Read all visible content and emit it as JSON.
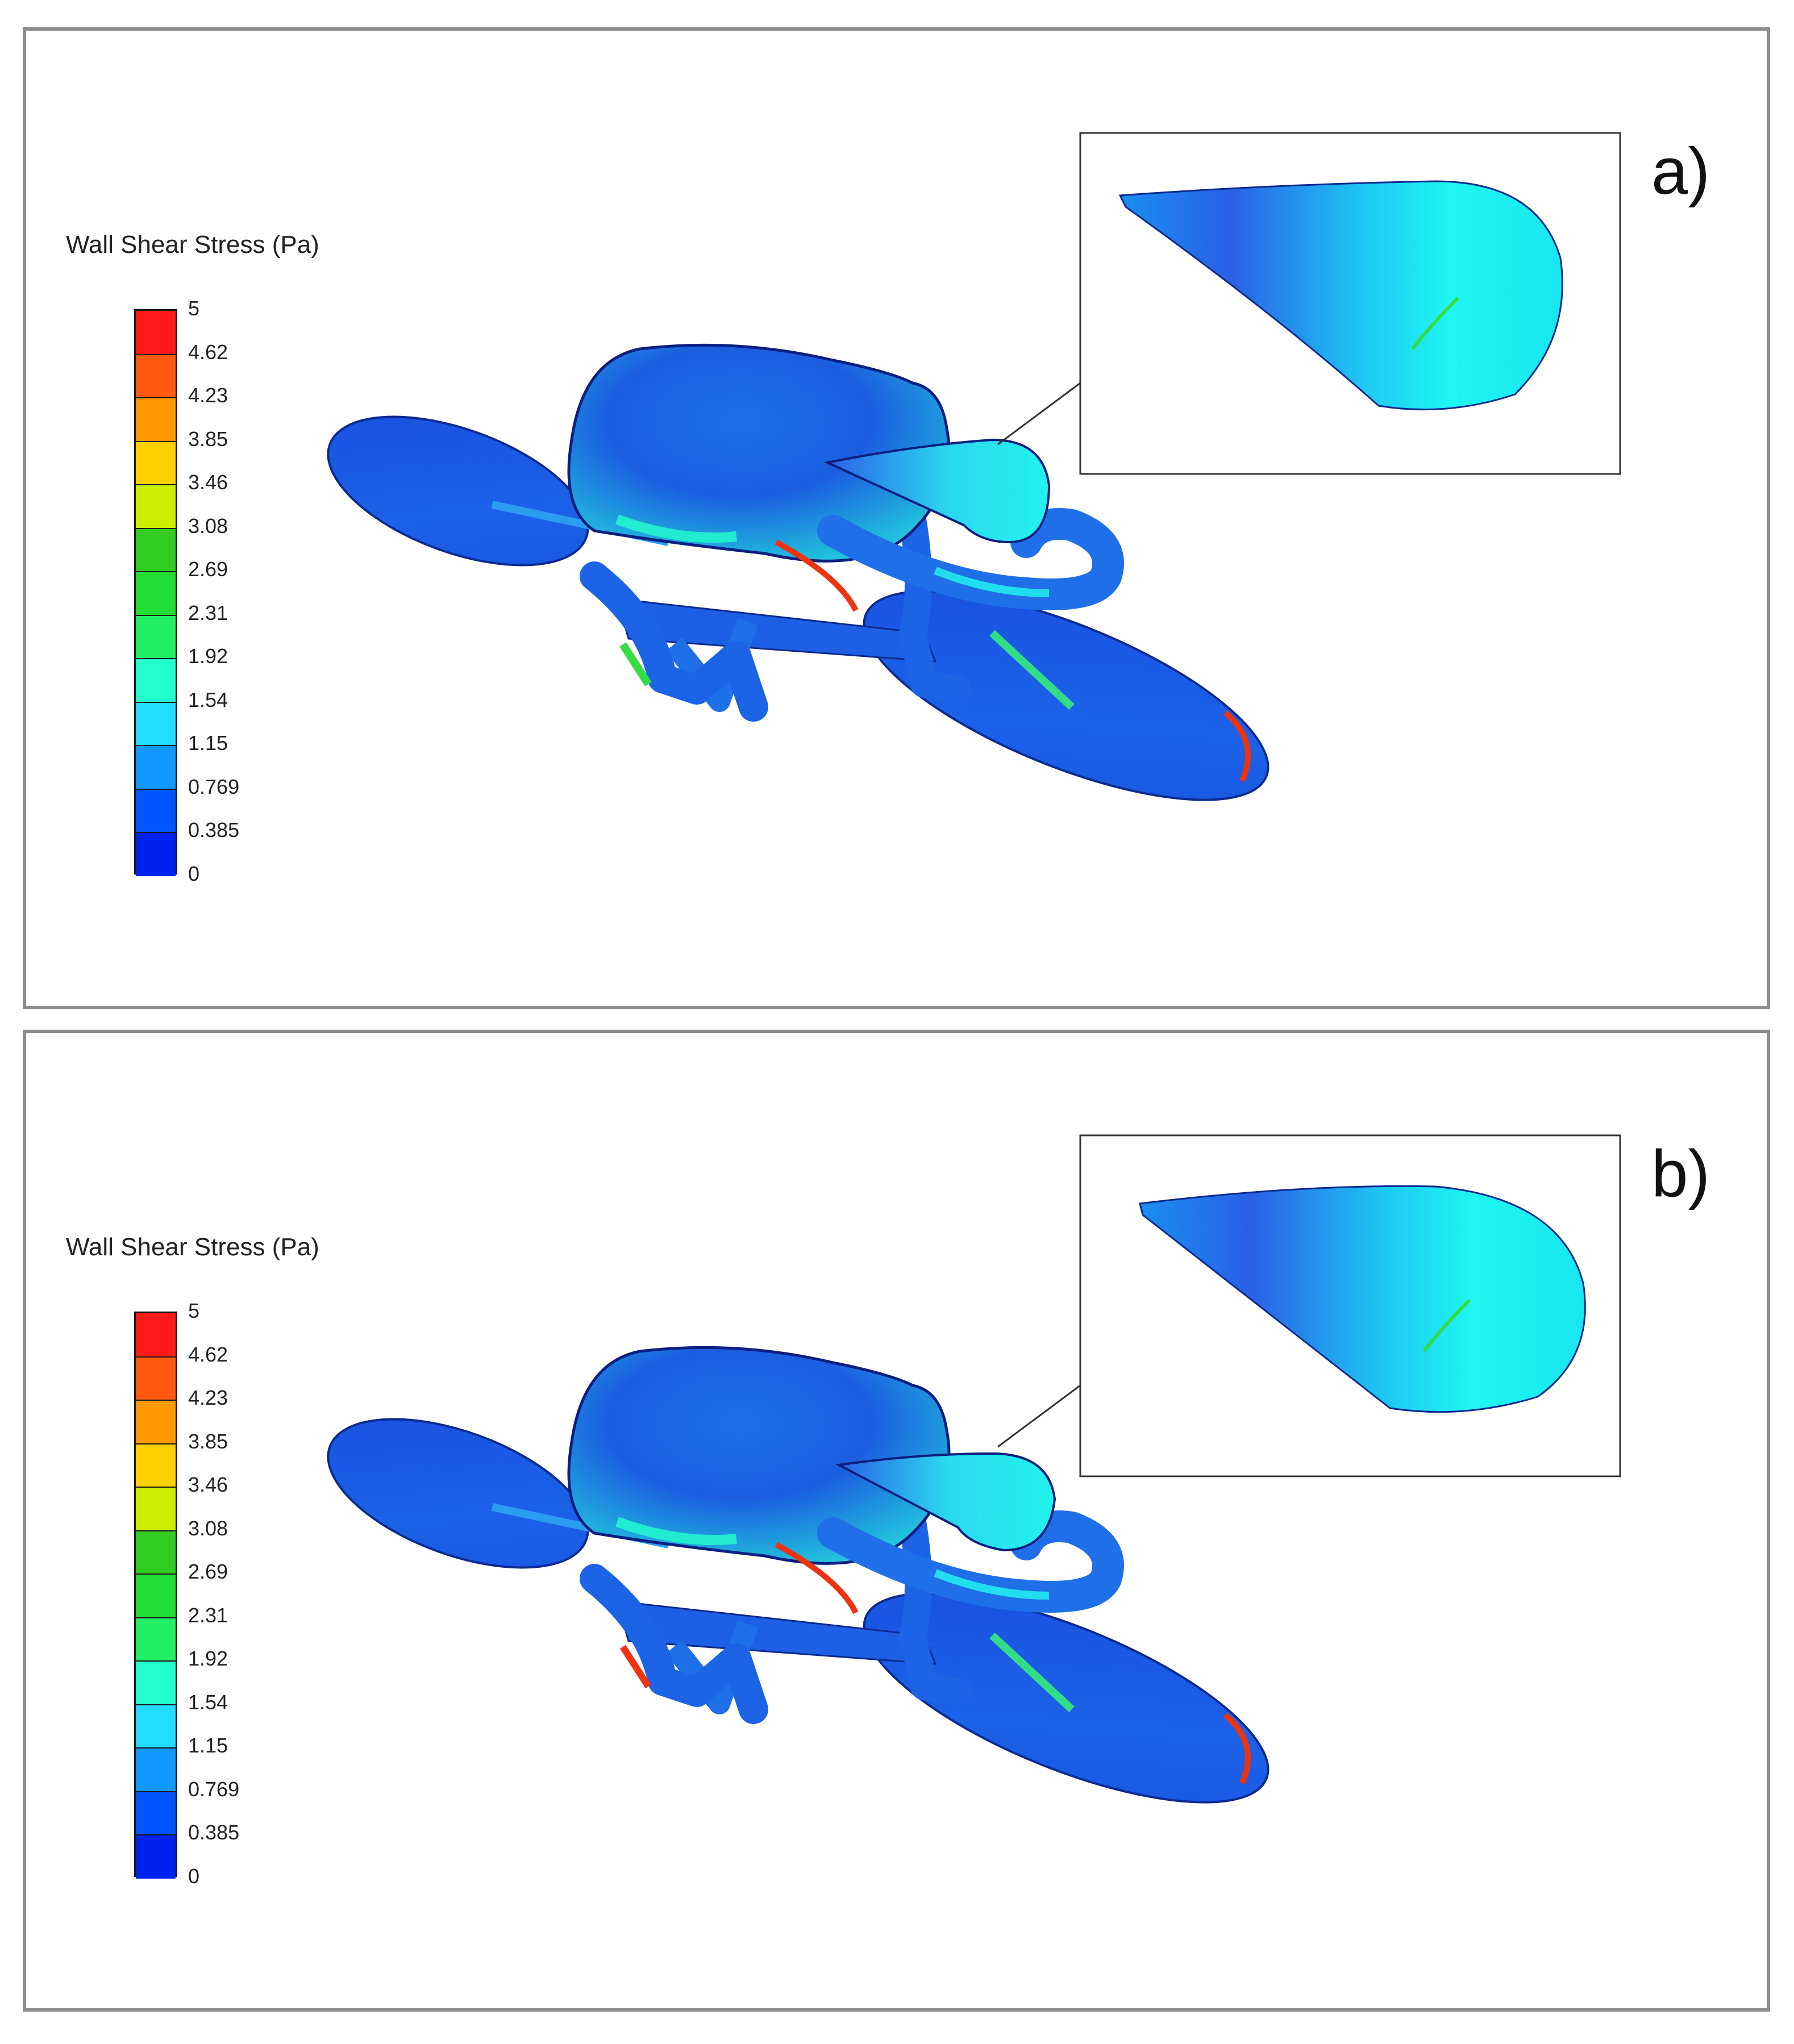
{
  "panels": [
    {
      "label": "a)"
    },
    {
      "label": "b)"
    }
  ],
  "legend": {
    "title": "Wall Shear Stress (Pa)",
    "ticks": [
      "5",
      "4.62",
      "4.23",
      "3.85",
      "3.46",
      "3.08",
      "2.69",
      "2.31",
      "1.92",
      "1.54",
      "1.15",
      "0.769",
      "0.385",
      "0"
    ],
    "colors": [
      "#ff1a1a",
      "#ff5a10",
      "#ff9900",
      "#ffd000",
      "#ccee00",
      "#33cc22",
      "#22dd33",
      "#22ee66",
      "#22ffcc",
      "#22ddff",
      "#1199ff",
      "#0055ff",
      "#0022ee"
    ]
  },
  "colors": {
    "frame_border": "#8c8c8c",
    "base_blue": "#1d5fe0",
    "cyan": "#22ffee",
    "green": "#33dd44",
    "red": "#ee2211"
  }
}
